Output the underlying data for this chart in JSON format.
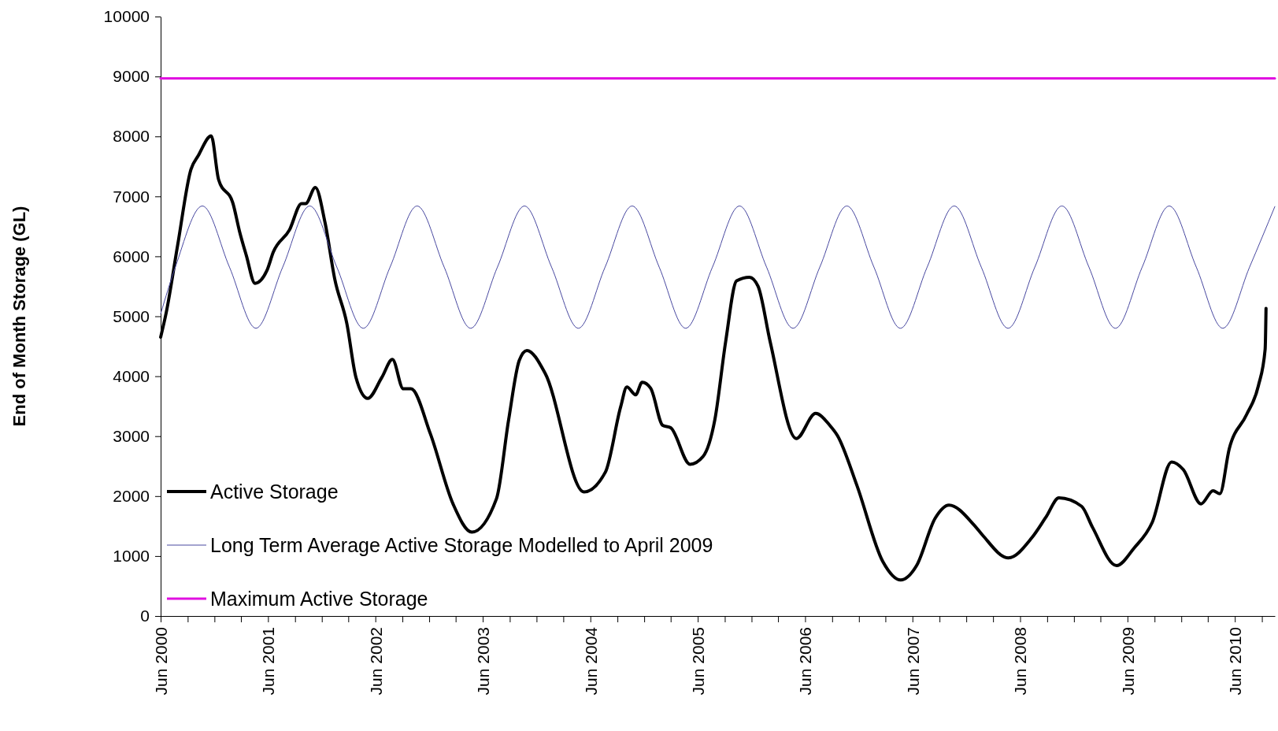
{
  "chart_data": {
    "type": "line",
    "ylabel": "End of Month Storage (GL)",
    "ylim": [
      0,
      10000
    ],
    "yticks": [
      0,
      1000,
      2000,
      3000,
      4000,
      5000,
      6000,
      7000,
      8000,
      9000,
      10000
    ],
    "xlim": [
      "2000-06-01",
      "2010-10-15"
    ],
    "xticks": [
      {
        "value": "2000-06-01",
        "label": "Jun 2000"
      },
      {
        "value": "2000-09-01",
        "label": null
      },
      {
        "value": "2000-12-01",
        "label": null
      },
      {
        "value": "2001-03-01",
        "label": null
      },
      {
        "value": "2001-06-01",
        "label": "Jun 2001"
      },
      {
        "value": "2001-09-01",
        "label": null
      },
      {
        "value": "2001-12-01",
        "label": null
      },
      {
        "value": "2002-03-01",
        "label": null
      },
      {
        "value": "2002-06-01",
        "label": "Jun 2002"
      },
      {
        "value": "2002-09-01",
        "label": null
      },
      {
        "value": "2002-12-01",
        "label": null
      },
      {
        "value": "2003-03-01",
        "label": null
      },
      {
        "value": "2003-06-01",
        "label": "Jun 2003"
      },
      {
        "value": "2003-09-01",
        "label": null
      },
      {
        "value": "2003-12-01",
        "label": null
      },
      {
        "value": "2004-03-01",
        "label": null
      },
      {
        "value": "2004-06-01",
        "label": "Jun 2004"
      },
      {
        "value": "2004-09-01",
        "label": null
      },
      {
        "value": "2004-12-01",
        "label": null
      },
      {
        "value": "2005-03-01",
        "label": null
      },
      {
        "value": "2005-06-01",
        "label": "Jun 2005"
      },
      {
        "value": "2005-09-01",
        "label": null
      },
      {
        "value": "2005-12-01",
        "label": null
      },
      {
        "value": "2006-03-01",
        "label": null
      },
      {
        "value": "2006-06-01",
        "label": "Jun 2006"
      },
      {
        "value": "2006-09-01",
        "label": null
      },
      {
        "value": "2006-12-01",
        "label": null
      },
      {
        "value": "2007-03-01",
        "label": null
      },
      {
        "value": "2007-06-01",
        "label": "Jun 2007"
      },
      {
        "value": "2007-09-01",
        "label": null
      },
      {
        "value": "2007-12-01",
        "label": null
      },
      {
        "value": "2008-03-01",
        "label": null
      },
      {
        "value": "2008-06-01",
        "label": "Jun 2008"
      },
      {
        "value": "2008-09-01",
        "label": null
      },
      {
        "value": "2008-12-01",
        "label": null
      },
      {
        "value": "2009-03-01",
        "label": null
      },
      {
        "value": "2009-06-01",
        "label": "Jun 2009"
      },
      {
        "value": "2009-09-01",
        "label": null
      },
      {
        "value": "2009-12-01",
        "label": null
      },
      {
        "value": "2010-03-01",
        "label": null
      },
      {
        "value": "2010-06-01",
        "label": "Jun 2010"
      },
      {
        "value": "2010-09-01",
        "label": null
      }
    ],
    "legend": "bottom left",
    "marker": "none",
    "series": [
      {
        "name": "Active Storage",
        "color": "#000000",
        "x": [
          "2000-06-01",
          "2000-06-20",
          "2000-07-29",
          "2000-09-12",
          "2000-10-07",
          "2000-11-20",
          "2000-12-15",
          "2001-02-02",
          "2001-02-24",
          "2001-03-19",
          "2001-04-18",
          "2001-05-28",
          "2001-06-19",
          "2001-08-13",
          "2001-09-23",
          "2001-10-07",
          "2001-11-09",
          "2001-12-12",
          "2002-01-14",
          "2002-02-24",
          "2002-03-27",
          "2002-05-06",
          "2002-06-23",
          "2002-07-29",
          "2002-09-04",
          "2002-09-30",
          "2002-12-05",
          "2003-02-20",
          "2003-04-25",
          "2003-07-18",
          "2003-08-28",
          "2003-10-03",
          "2003-10-29",
          "2003-12-30",
          "2004-05-10",
          "2004-07-22",
          "2004-09-12",
          "2004-10-03",
          "2004-11-02",
          "2004-11-24",
          "2004-12-23",
          "2005-02-02",
          "2005-03-01",
          "2005-05-06",
          "2005-06-19",
          "2005-07-29",
          "2005-09-04",
          "2005-10-11",
          "2005-11-24",
          "2005-12-23",
          "2006-02-02",
          "2006-05-02",
          "2006-07-07",
          "2006-08-24",
          "2006-09-19",
          "2006-11-24",
          "2007-02-20",
          "2007-04-22",
          "2007-06-15",
          "2007-08-17",
          "2007-10-03",
          "2007-12-27",
          "2008-01-25",
          "2008-04-22",
          "2008-07-10",
          "2008-08-28",
          "2008-10-11",
          "2008-12-27",
          "2009-02-02",
          "2009-04-25",
          "2009-06-23",
          "2009-08-24",
          "2009-10-29",
          "2009-12-08",
          "2010-02-06",
          "2010-03-19",
          "2010-04-11",
          "2010-05-13",
          "2010-07-11",
          "2010-08-20",
          "2010-09-12",
          "2010-09-15"
        ],
        "values": [
          4650,
          5060,
          6190,
          7450,
          7680,
          8010,
          7280,
          6880,
          6420,
          6020,
          5550,
          5760,
          6070,
          6440,
          6880,
          6880,
          7150,
          6560,
          5620,
          4880,
          3980,
          3630,
          3980,
          4280,
          3790,
          3790,
          3040,
          1870,
          1400,
          1960,
          3270,
          4260,
          4430,
          4050,
          2070,
          2400,
          3490,
          3820,
          3690,
          3900,
          3800,
          3180,
          3140,
          2530,
          2660,
          3270,
          4580,
          5590,
          5650,
          5500,
          4580,
          2960,
          3380,
          3180,
          3010,
          2180,
          910,
          600,
          840,
          1630,
          1850,
          1520,
          1350,
          970,
          1300,
          1650,
          1970,
          1830,
          1480,
          840,
          1130,
          1560,
          2570,
          2440,
          1870,
          2090,
          2040,
          2790,
          3360,
          3840,
          4450,
          5130
        ]
      },
      {
        "name": "Long Term Average Active Storage Modelled to April 2009",
        "color": "#4848a0",
        "x": [
          "2000-06-01",
          "2000-07-21",
          "2000-10-21",
          "2001-01-21",
          "2001-04-21",
          "2001-07-21",
          "2001-10-21",
          "2002-01-21",
          "2002-04-21",
          "2002-07-21",
          "2002-10-21",
          "2003-01-21",
          "2003-04-21",
          "2003-07-21",
          "2003-10-21",
          "2004-01-21",
          "2004-04-21",
          "2004-07-21",
          "2004-10-21",
          "2005-01-21",
          "2005-04-21",
          "2005-07-21",
          "2005-10-21",
          "2006-01-21",
          "2006-04-21",
          "2006-07-21",
          "2006-10-21",
          "2007-01-21",
          "2007-04-21",
          "2007-07-21",
          "2007-10-21",
          "2008-01-21",
          "2008-04-21",
          "2008-07-21",
          "2008-10-21",
          "2009-01-21",
          "2009-04-21",
          "2009-07-21",
          "2009-10-21",
          "2010-01-21",
          "2010-04-21",
          "2010-07-21",
          "2010-10-15"
        ],
        "values": [
          5040,
          5820,
          6840,
          5820,
          4800,
          5820,
          6840,
          5820,
          4800,
          5820,
          6840,
          5820,
          4800,
          5820,
          6840,
          5820,
          4800,
          5820,
          6840,
          5820,
          4800,
          5820,
          6840,
          5820,
          4800,
          5820,
          6840,
          5820,
          4800,
          5820,
          6840,
          5820,
          4800,
          5820,
          6840,
          5820,
          4800,
          5820,
          6840,
          5820,
          4800,
          5820,
          6830
        ]
      },
      {
        "name": "Maximum Active Storage",
        "color": "#e010e0",
        "x": [
          "2000-06-01",
          "2010-10-15"
        ],
        "values": [
          8970,
          8970
        ]
      }
    ]
  }
}
